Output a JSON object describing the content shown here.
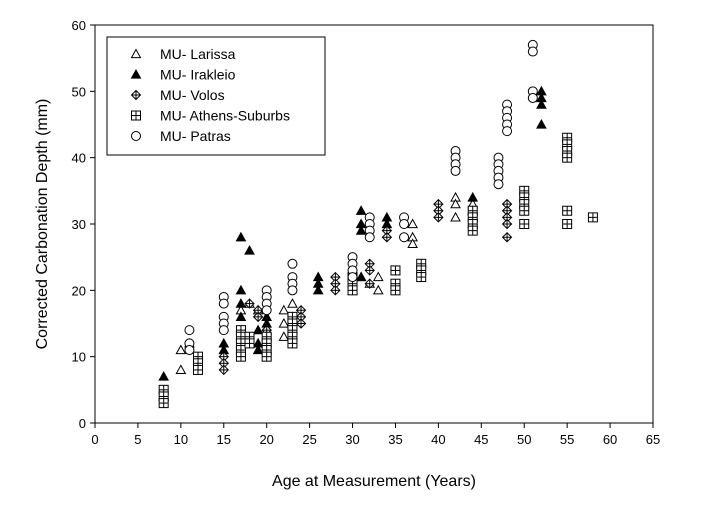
{
  "chart_data": {
    "type": "scatter",
    "title": "",
    "xlabel": "Age at Measurement (Years)",
    "ylabel": "Corrected Carbonation Depth (mm)",
    "xlim": [
      0,
      65
    ],
    "ylim": [
      0,
      60
    ],
    "xticks": [
      0,
      5,
      10,
      15,
      20,
      25,
      30,
      35,
      40,
      45,
      50,
      55,
      60,
      65
    ],
    "yticks": [
      0,
      10,
      20,
      30,
      40,
      50,
      60
    ],
    "grid": false,
    "legend_position": "top-left",
    "series": [
      {
        "name": "MU- Larissa",
        "marker": "open-triangle",
        "points": [
          [
            10,
            8
          ],
          [
            10,
            11
          ],
          [
            17,
            17
          ],
          [
            18,
            18
          ],
          [
            19,
            17
          ],
          [
            20,
            14
          ],
          [
            22,
            13
          ],
          [
            22,
            15
          ],
          [
            22,
            17
          ],
          [
            23,
            18
          ],
          [
            30,
            20
          ],
          [
            31,
            22
          ],
          [
            32,
            21
          ],
          [
            33,
            22
          ],
          [
            33,
            20
          ],
          [
            37,
            30
          ],
          [
            37,
            28
          ],
          [
            37,
            27
          ],
          [
            42,
            34
          ],
          [
            42,
            33
          ],
          [
            42,
            31
          ],
          [
            44,
            33
          ],
          [
            44,
            32
          ]
        ]
      },
      {
        "name": "MU- Irakleio",
        "marker": "filled-triangle",
        "points": [
          [
            8,
            7
          ],
          [
            8,
            4
          ],
          [
            11,
            12
          ],
          [
            15,
            12
          ],
          [
            15,
            11
          ],
          [
            17,
            28
          ],
          [
            18,
            26
          ],
          [
            17,
            20
          ],
          [
            17,
            18
          ],
          [
            17,
            16
          ],
          [
            19,
            14
          ],
          [
            19,
            12
          ],
          [
            19,
            11
          ],
          [
            20,
            16
          ],
          [
            20,
            15
          ],
          [
            26,
            22
          ],
          [
            26,
            21
          ],
          [
            26,
            20
          ],
          [
            31,
            32
          ],
          [
            31,
            30
          ],
          [
            31,
            29
          ],
          [
            31,
            22
          ],
          [
            34,
            31
          ],
          [
            34,
            30
          ],
          [
            44,
            34
          ],
          [
            52,
            50
          ],
          [
            52,
            49
          ],
          [
            52,
            48
          ],
          [
            52,
            45
          ]
        ]
      },
      {
        "name": "MU- Volos",
        "marker": "crossed-diamond",
        "points": [
          [
            15,
            10
          ],
          [
            15,
            9
          ],
          [
            15,
            8
          ],
          [
            18,
            18
          ],
          [
            19,
            17
          ],
          [
            19,
            16
          ],
          [
            20,
            14
          ],
          [
            23,
            16
          ],
          [
            24,
            17
          ],
          [
            24,
            16
          ],
          [
            24,
            15
          ],
          [
            28,
            22
          ],
          [
            28,
            21
          ],
          [
            28,
            20
          ],
          [
            32,
            24
          ],
          [
            32,
            23
          ],
          [
            32,
            21
          ],
          [
            34,
            29
          ],
          [
            34,
            28
          ],
          [
            40,
            33
          ],
          [
            40,
            32
          ],
          [
            40,
            31
          ],
          [
            48,
            33
          ],
          [
            48,
            32
          ],
          [
            48,
            31
          ],
          [
            48,
            30
          ],
          [
            48,
            28
          ]
        ]
      },
      {
        "name": "MU- Athens-Suburbs",
        "marker": "grid-square",
        "points": [
          [
            8,
            5
          ],
          [
            8,
            4
          ],
          [
            8,
            3
          ],
          [
            12,
            10
          ],
          [
            12,
            9
          ],
          [
            12,
            8
          ],
          [
            17,
            14
          ],
          [
            17,
            13
          ],
          [
            17,
            12
          ],
          [
            17,
            11
          ],
          [
            17,
            10
          ],
          [
            18,
            13
          ],
          [
            18,
            12
          ],
          [
            20,
            13
          ],
          [
            20,
            12
          ],
          [
            20,
            11
          ],
          [
            20,
            10
          ],
          [
            23,
            16
          ],
          [
            23,
            15
          ],
          [
            23,
            14
          ],
          [
            23,
            13
          ],
          [
            23,
            12
          ],
          [
            30,
            22
          ],
          [
            30,
            21
          ],
          [
            30,
            20
          ],
          [
            35,
            23
          ],
          [
            35,
            21
          ],
          [
            35,
            20
          ],
          [
            38,
            24
          ],
          [
            38,
            23
          ],
          [
            38,
            22
          ],
          [
            44,
            32
          ],
          [
            44,
            31
          ],
          [
            44,
            30
          ],
          [
            44,
            29
          ],
          [
            50,
            35
          ],
          [
            50,
            34
          ],
          [
            50,
            33
          ],
          [
            50,
            32
          ],
          [
            50,
            30
          ],
          [
            55,
            43
          ],
          [
            55,
            42
          ],
          [
            55,
            41
          ],
          [
            55,
            40
          ],
          [
            55,
            32
          ],
          [
            55,
            30
          ],
          [
            58,
            31
          ]
        ]
      },
      {
        "name": "MU- Patras",
        "marker": "open-circle",
        "points": [
          [
            11,
            14
          ],
          [
            11,
            12
          ],
          [
            11,
            11
          ],
          [
            15,
            19
          ],
          [
            15,
            18
          ],
          [
            15,
            16
          ],
          [
            15,
            15
          ],
          [
            15,
            14
          ],
          [
            20,
            20
          ],
          [
            20,
            19
          ],
          [
            20,
            18
          ],
          [
            20,
            17
          ],
          [
            23,
            24
          ],
          [
            23,
            22
          ],
          [
            23,
            21
          ],
          [
            23,
            20
          ],
          [
            30,
            25
          ],
          [
            30,
            24
          ],
          [
            30,
            23
          ],
          [
            30,
            22
          ],
          [
            32,
            31
          ],
          [
            32,
            30
          ],
          [
            32,
            29
          ],
          [
            32,
            28
          ],
          [
            36,
            31
          ],
          [
            36,
            30
          ],
          [
            36,
            28
          ],
          [
            42,
            41
          ],
          [
            42,
            40
          ],
          [
            42,
            39
          ],
          [
            42,
            38
          ],
          [
            47,
            40
          ],
          [
            47,
            39
          ],
          [
            47,
            38
          ],
          [
            47,
            37
          ],
          [
            47,
            36
          ],
          [
            48,
            48
          ],
          [
            48,
            47
          ],
          [
            48,
            46
          ],
          [
            48,
            45
          ],
          [
            48,
            44
          ],
          [
            51,
            57
          ],
          [
            51,
            56
          ],
          [
            51,
            50
          ],
          [
            51,
            49
          ]
        ]
      }
    ]
  }
}
